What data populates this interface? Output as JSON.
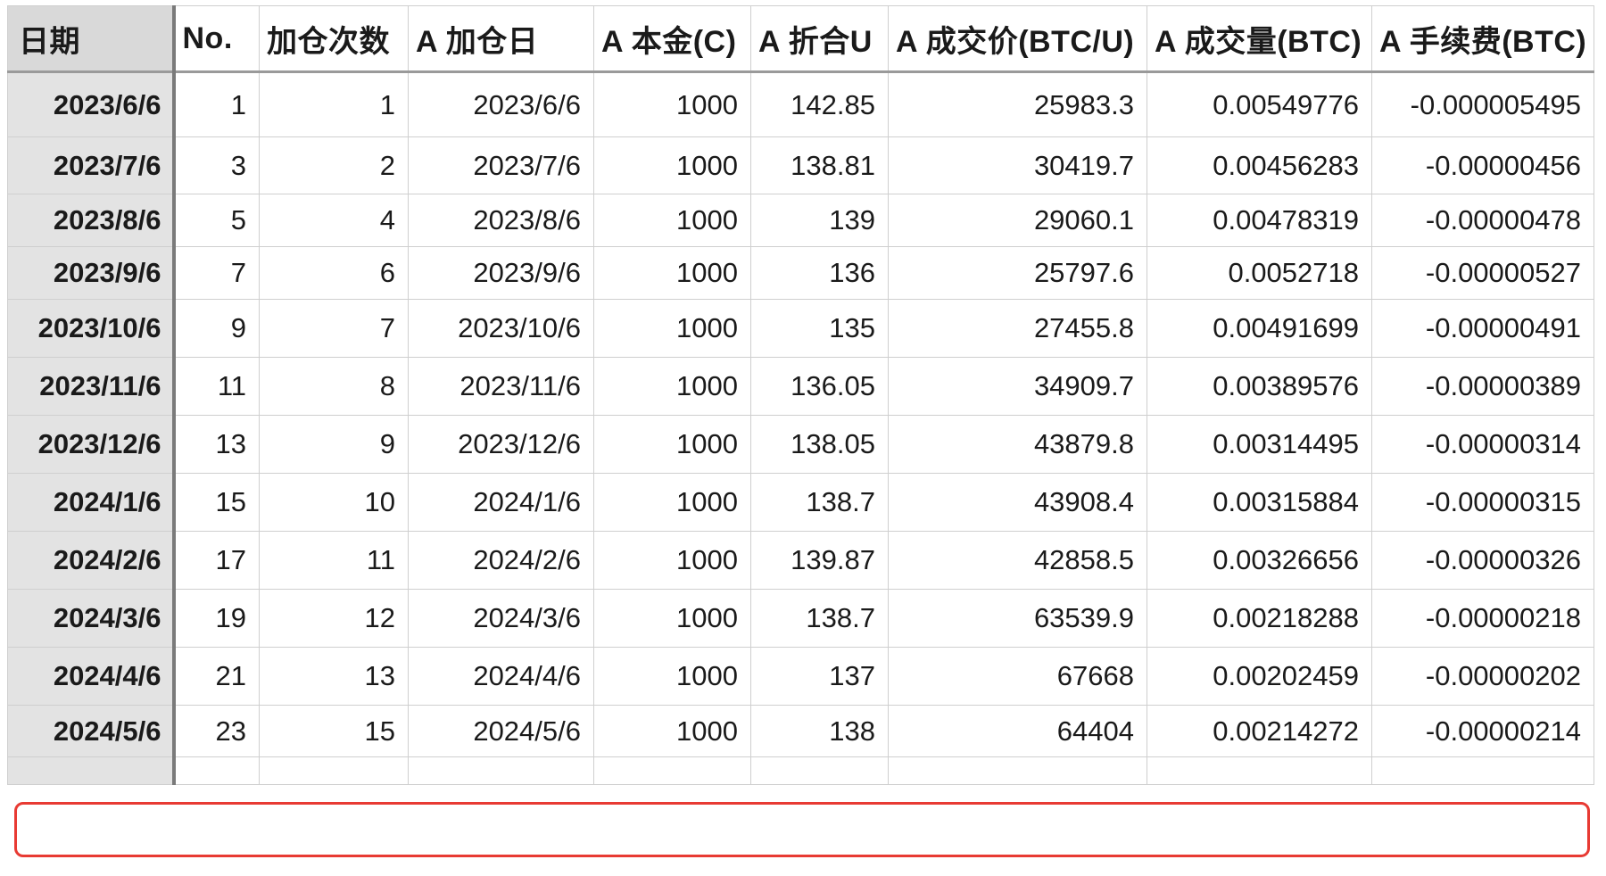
{
  "table": {
    "headers": [
      "日期",
      "No.",
      "加仓次数",
      "A 加仓日",
      "A 本金(C)",
      "A 折合U",
      "A 成交价(BTC/U)",
      "A 成交量(BTC)",
      "A 手续费(BTC)"
    ],
    "rows": [
      {
        "date": "2023/6/6",
        "no": "1",
        "count": "1",
        "add_date": "2023/6/6",
        "principal": "1000",
        "usdt": "142.85",
        "price": "25983.3",
        "volume": "0.00549776",
        "fee": "-0.000005495"
      },
      {
        "date": "2023/7/6",
        "no": "3",
        "count": "2",
        "add_date": "2023/7/6",
        "principal": "1000",
        "usdt": "138.81",
        "price": "30419.7",
        "volume": "0.00456283",
        "fee": "-0.00000456"
      },
      {
        "date": "2023/8/6",
        "no": "5",
        "count": "4",
        "add_date": "2023/8/6",
        "principal": "1000",
        "usdt": "139",
        "price": "29060.1",
        "volume": "0.00478319",
        "fee": "-0.00000478"
      },
      {
        "date": "2023/9/6",
        "no": "7",
        "count": "6",
        "add_date": "2023/9/6",
        "principal": "1000",
        "usdt": "136",
        "price": "25797.6",
        "volume": "0.0052718",
        "fee": "-0.00000527"
      },
      {
        "date": "2023/10/6",
        "no": "9",
        "count": "7",
        "add_date": "2023/10/6",
        "principal": "1000",
        "usdt": "135",
        "price": "27455.8",
        "volume": "0.00491699",
        "fee": "-0.00000491"
      },
      {
        "date": "2023/11/6",
        "no": "11",
        "count": "8",
        "add_date": "2023/11/6",
        "principal": "1000",
        "usdt": "136.05",
        "price": "34909.7",
        "volume": "0.00389576",
        "fee": "-0.00000389"
      },
      {
        "date": "2023/12/6",
        "no": "13",
        "count": "9",
        "add_date": "2023/12/6",
        "principal": "1000",
        "usdt": "138.05",
        "price": "43879.8",
        "volume": "0.00314495",
        "fee": "-0.00000314"
      },
      {
        "date": "2024/1/6",
        "no": "15",
        "count": "10",
        "add_date": "2024/1/6",
        "principal": "1000",
        "usdt": "138.7",
        "price": "43908.4",
        "volume": "0.00315884",
        "fee": "-0.00000315"
      },
      {
        "date": "2024/2/6",
        "no": "17",
        "count": "11",
        "add_date": "2024/2/6",
        "principal": "1000",
        "usdt": "139.87",
        "price": "42858.5",
        "volume": "0.00326656",
        "fee": "-0.00000326"
      },
      {
        "date": "2024/3/6",
        "no": "19",
        "count": "12",
        "add_date": "2024/3/6",
        "principal": "1000",
        "usdt": "138.7",
        "price": "63539.9",
        "volume": "0.00218288",
        "fee": "-0.00000218"
      },
      {
        "date": "2024/4/6",
        "no": "21",
        "count": "13",
        "add_date": "2024/4/6",
        "principal": "1000",
        "usdt": "137",
        "price": "67668",
        "volume": "0.00202459",
        "fee": "-0.00000202"
      },
      {
        "date": "2024/5/6",
        "no": "23",
        "count": "15",
        "add_date": "2024/5/6",
        "principal": "1000",
        "usdt": "138",
        "price": "64404",
        "volume": "0.00214272",
        "fee": "-0.00000214"
      }
    ]
  },
  "colors": {
    "highlight_border": "#e83a33",
    "header_date_bg": "#d9d9d9",
    "date_column_bg": "#e3e3e3",
    "grid_line": "#cfcfcf"
  }
}
